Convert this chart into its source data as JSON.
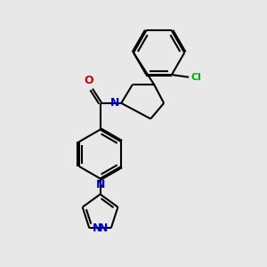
{
  "bg_color": "#e8e8e8",
  "bond_color": "#000000",
  "n_color": "#0000cc",
  "o_color": "#cc0000",
  "cl_color": "#00aa00",
  "line_width": 1.5,
  "figsize": [
    3.0,
    3.0
  ],
  "dpi": 100,
  "xlim": [
    -1.8,
    2.2
  ],
  "ylim": [
    -2.8,
    2.6
  ]
}
